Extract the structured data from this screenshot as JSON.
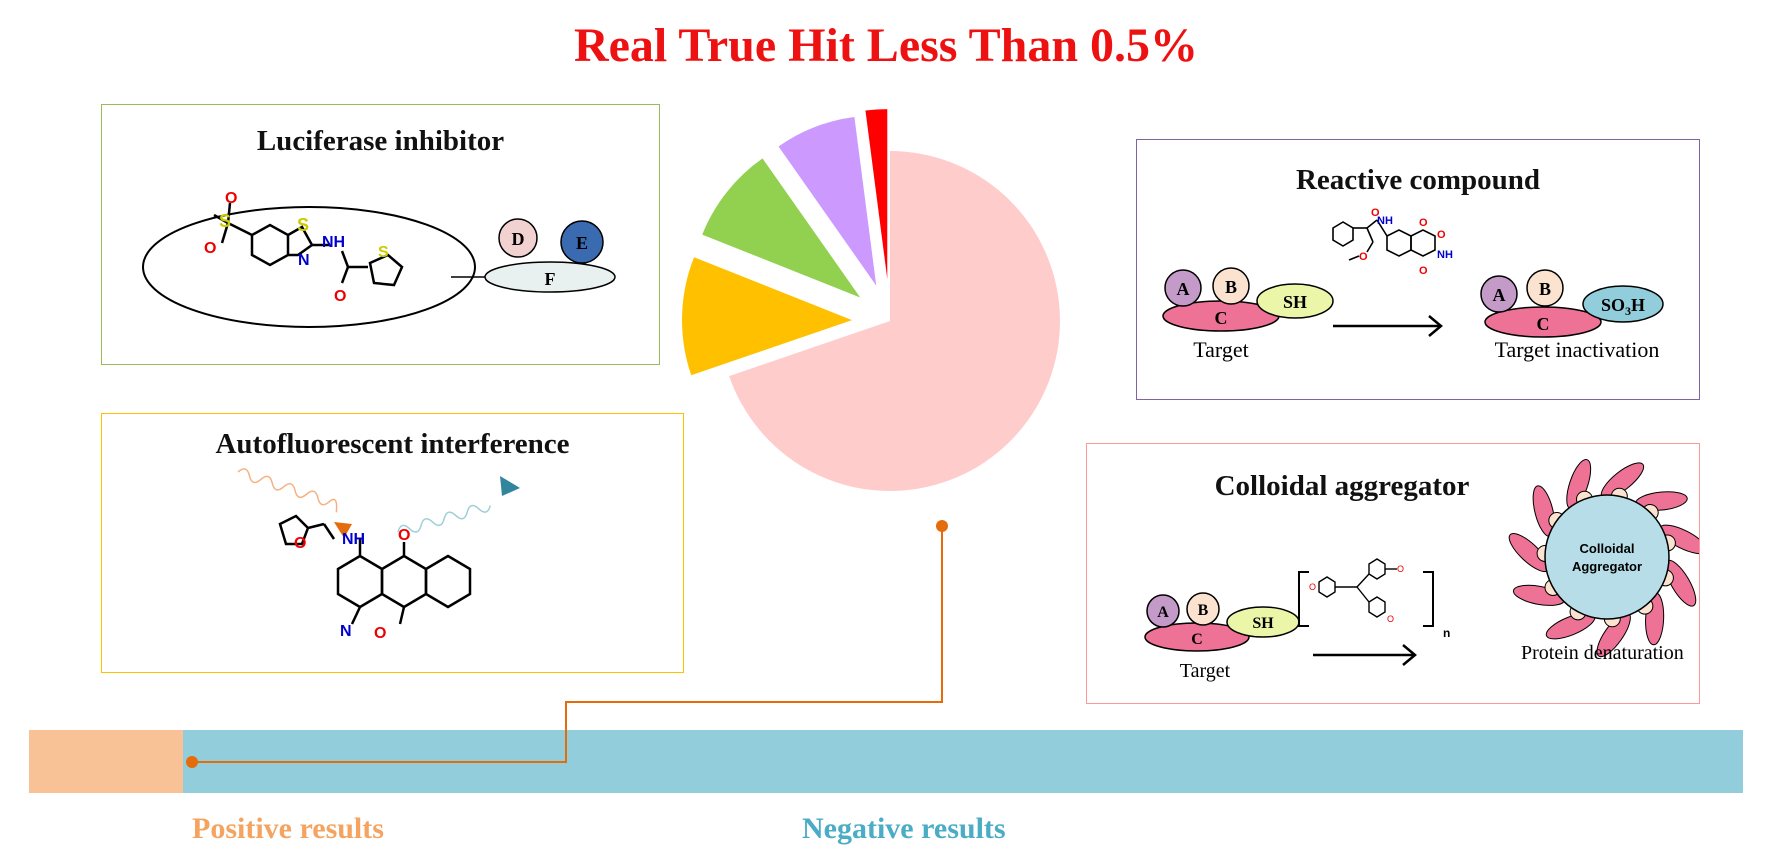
{
  "title": "Real True Hit Less Than 0.5%",
  "panels": {
    "luciferase": {
      "title": "Luciferase inhibitor",
      "labels": {
        "d": "D",
        "e": "E",
        "f": "F"
      }
    },
    "autofluorescent": {
      "title": "Autofluorescent interference"
    },
    "reactive": {
      "title": "Reactive compound",
      "labels": {
        "a": "A",
        "b": "B",
        "c": "C",
        "sh": "SH",
        "so3h_main": "SO",
        "so3h_sub": "3",
        "so3h_end": "H"
      },
      "target": "Target",
      "result": "Target inactivation"
    },
    "colloidal": {
      "title": "Colloidal aggregator",
      "labels": {
        "a": "A",
        "b": "B",
        "c": "C",
        "sh": "SH",
        "n": "n"
      },
      "target": "Target",
      "aggregate_line1": "Colloidal",
      "aggregate_line2": "Aggregator",
      "result": "Protein denaturation"
    }
  },
  "chart_data": {
    "type": "pie",
    "slices": [
      {
        "name": "Negative results",
        "value": 68,
        "color": "#ffcccc"
      },
      {
        "name": "Autofluorescent interference",
        "value": 11,
        "color": "#ffc000"
      },
      {
        "name": "Luciferase inhibitor",
        "value": 9,
        "color": "#92d050"
      },
      {
        "name": "Colloidal aggregator",
        "value": 7.5,
        "color": "#cc99ff"
      },
      {
        "name": "Reactive compound",
        "value": 2,
        "color": "#ff0000"
      }
    ]
  },
  "results_bar": {
    "positive": {
      "label": "Positive results",
      "fraction": 0.09,
      "color": "#f8c196",
      "text_color": "#f4a460"
    },
    "negative": {
      "label": "Negative results",
      "fraction": 0.91,
      "color": "#92cddc",
      "text_color": "#4bacc6"
    }
  },
  "colors": {
    "connector": "#e46c0a",
    "title": "#ee1111"
  }
}
